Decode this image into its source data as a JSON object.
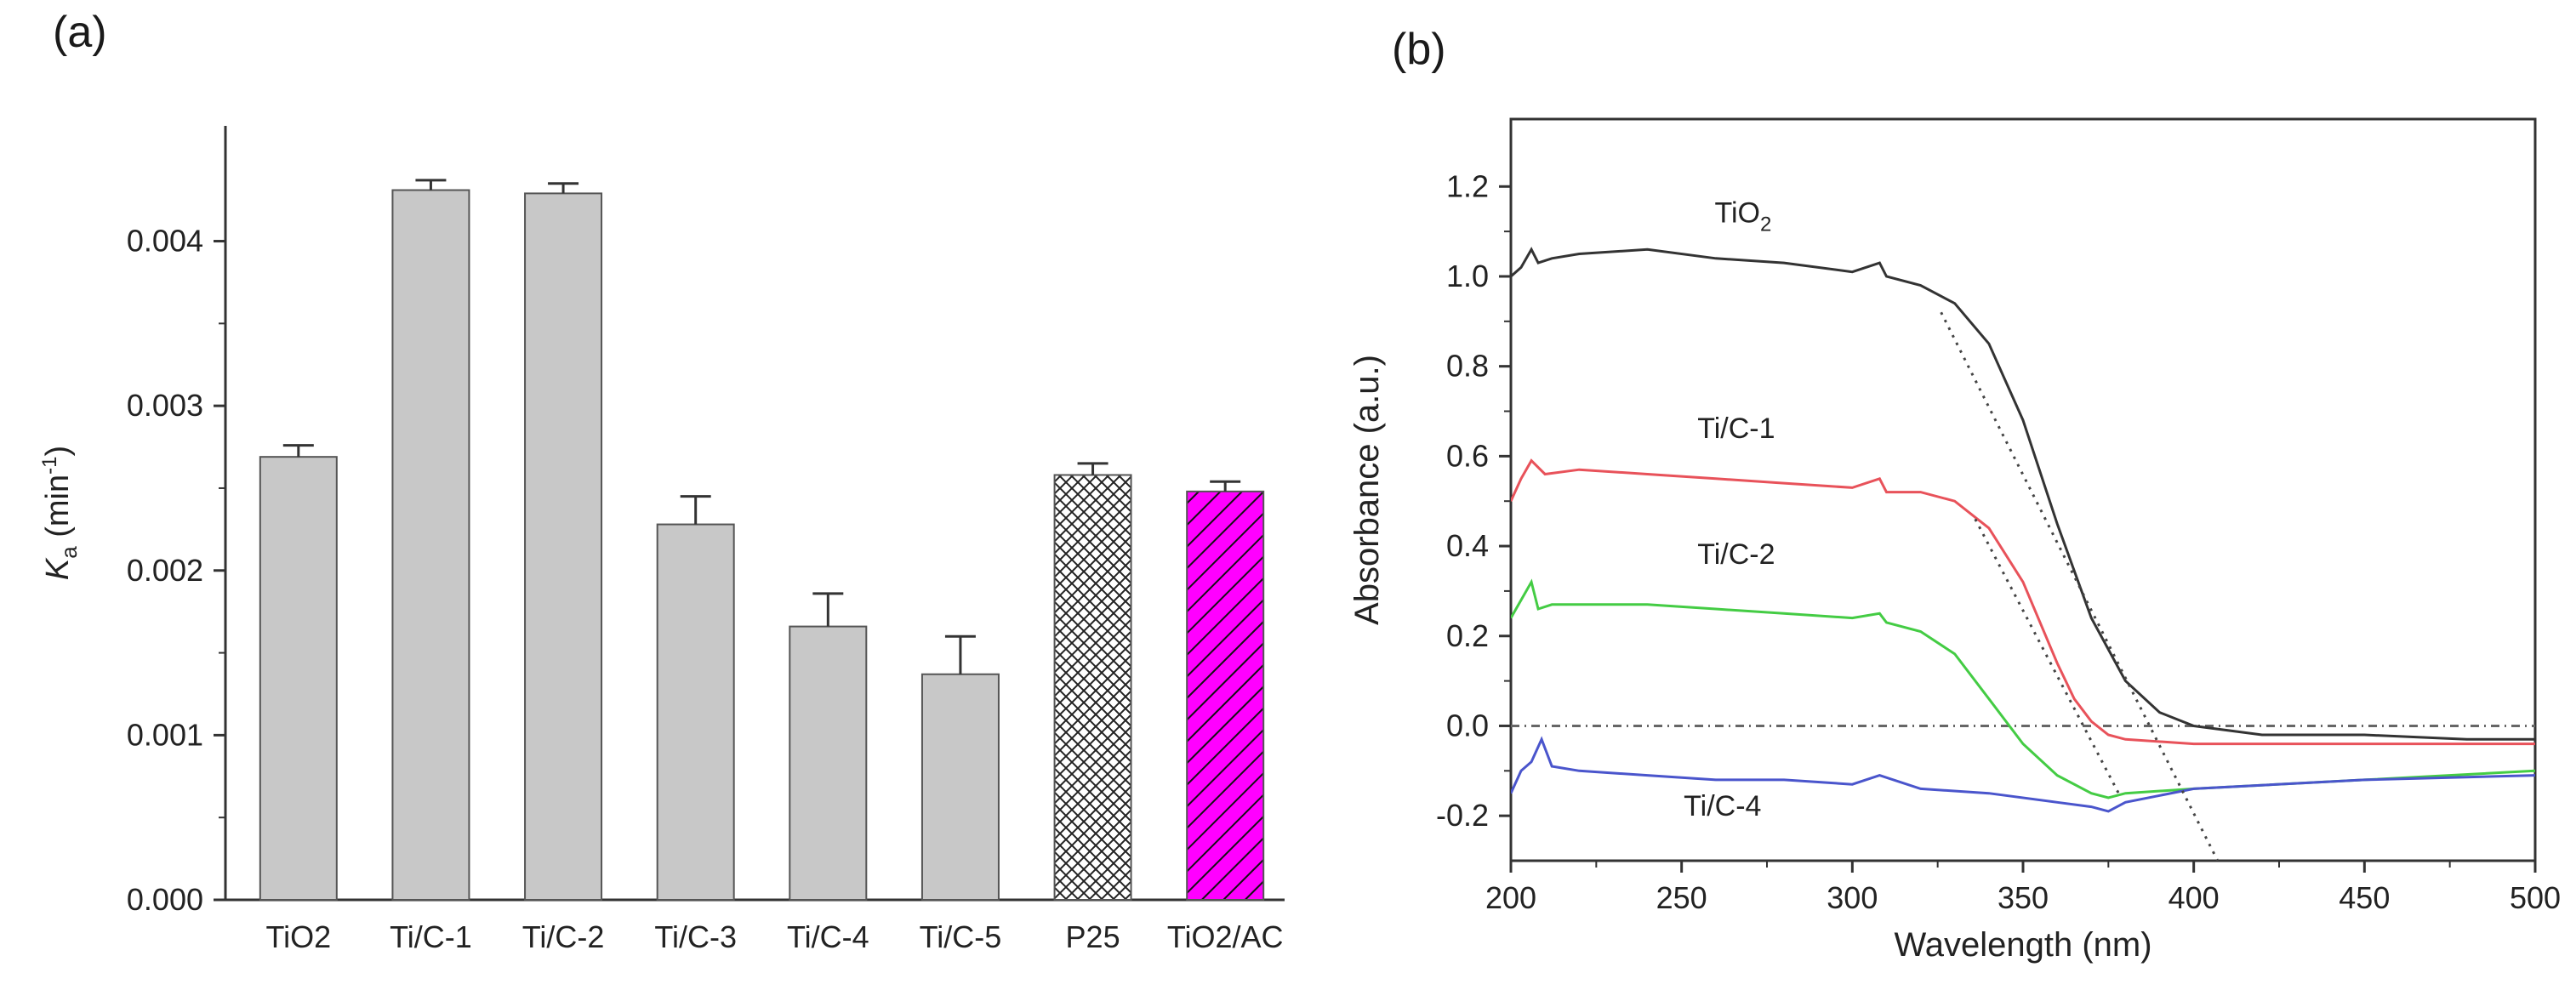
{
  "panels": {
    "a": {
      "label": "(a)"
    },
    "b": {
      "label": "(b)"
    }
  },
  "chart_data": [
    {
      "type": "bar",
      "panel": "(a)",
      "categories": [
        "TiO2",
        "Ti/C-1",
        "Ti/C-2",
        "Ti/C-3",
        "Ti/C-4",
        "Ti/C-5",
        "P25",
        "TiO2/AC"
      ],
      "values": [
        0.00269,
        0.00431,
        0.00429,
        0.00228,
        0.00166,
        0.00137,
        0.00258,
        0.00248
      ],
      "errors": [
        7e-05,
        6e-05,
        6e-05,
        0.00017,
        0.0002,
        0.00023,
        7e-05,
        6e-05
      ],
      "fills": [
        "gray",
        "gray",
        "gray",
        "gray",
        "gray",
        "gray",
        "crosshatch",
        "magenta-hatch"
      ],
      "colors": {
        "bar": "#c8c8c8",
        "edge": "#555555",
        "accent": "#ff00ff"
      },
      "ylabel_main": "K",
      "ylabel_sub": "a",
      "ylabel_unit": " (min",
      "ylabel_sup": "-1",
      "ylabel_close": ")",
      "xlabel": "",
      "ylim": [
        0,
        0.0047
      ],
      "yticks": [
        0.0,
        0.001,
        0.002,
        0.003,
        0.004
      ],
      "ytick_labels": [
        "0.000",
        "0.001",
        "0.002",
        "0.003",
        "0.004"
      ]
    },
    {
      "type": "line",
      "panel": "(b)",
      "xlabel": "Wavelength (nm)",
      "ylabel": "Absorbance (a.u.)",
      "xlim": [
        200,
        500
      ],
      "ylim": [
        -0.3,
        1.35
      ],
      "xticks": [
        200,
        250,
        300,
        350,
        400,
        450,
        500
      ],
      "xtick_labels": [
        "200",
        "250",
        "300",
        "350",
        "400",
        "450",
        "500"
      ],
      "yticks": [
        -0.2,
        0.0,
        0.2,
        0.4,
        0.6,
        0.8,
        1.0,
        1.2
      ],
      "ytick_labels": [
        "-0.2",
        "0.0",
        "0.2",
        "0.4",
        "0.6",
        "0.8",
        "1.0",
        "1.2"
      ],
      "baseline": 0.0,
      "series": [
        {
          "name": "TiO",
          "name_sub": "2",
          "color": "#333333",
          "x": [
            200,
            203,
            206,
            208,
            212,
            220,
            240,
            260,
            280,
            300,
            308,
            310,
            320,
            330,
            340,
            350,
            360,
            370,
            380,
            390,
            400,
            410,
            420,
            450,
            480,
            500
          ],
          "y": [
            1.0,
            1.02,
            1.06,
            1.03,
            1.04,
            1.05,
            1.06,
            1.04,
            1.03,
            1.01,
            1.03,
            1.0,
            0.98,
            0.94,
            0.85,
            0.68,
            0.45,
            0.24,
            0.1,
            0.03,
            0.0,
            -0.01,
            -0.02,
            -0.02,
            -0.03,
            -0.03
          ]
        },
        {
          "name": "Ti/C-1",
          "color": "#e8525a",
          "x": [
            200,
            203,
            206,
            210,
            220,
            240,
            260,
            280,
            300,
            308,
            310,
            320,
            330,
            340,
            350,
            360,
            365,
            370,
            375,
            380,
            400,
            450,
            500
          ],
          "y": [
            0.5,
            0.55,
            0.59,
            0.56,
            0.57,
            0.56,
            0.55,
            0.54,
            0.53,
            0.55,
            0.52,
            0.52,
            0.5,
            0.44,
            0.32,
            0.14,
            0.06,
            0.01,
            -0.02,
            -0.03,
            -0.04,
            -0.04,
            -0.04
          ]
        },
        {
          "name": "Ti/C-2",
          "color": "#44cc44",
          "x": [
            200,
            203,
            206,
            208,
            212,
            220,
            240,
            260,
            280,
            300,
            308,
            310,
            320,
            330,
            340,
            350,
            360,
            370,
            375,
            380,
            400,
            450,
            500
          ],
          "y": [
            0.24,
            0.28,
            0.32,
            0.26,
            0.27,
            0.27,
            0.27,
            0.26,
            0.25,
            0.24,
            0.25,
            0.23,
            0.21,
            0.16,
            0.06,
            -0.04,
            -0.11,
            -0.15,
            -0.16,
            -0.15,
            -0.14,
            -0.12,
            -0.1
          ]
        },
        {
          "name": "Ti/C-4",
          "color": "#4a55cc",
          "x": [
            200,
            203,
            206,
            209,
            212,
            220,
            240,
            260,
            280,
            300,
            308,
            320,
            340,
            360,
            370,
            375,
            380,
            400,
            450,
            500
          ],
          "y": [
            -0.15,
            -0.1,
            -0.08,
            -0.03,
            -0.09,
            -0.1,
            -0.11,
            -0.12,
            -0.12,
            -0.13,
            -0.11,
            -0.14,
            -0.15,
            -0.17,
            -0.18,
            -0.19,
            -0.17,
            -0.14,
            -0.12,
            -0.11
          ]
        }
      ],
      "tangents": [
        {
          "x": [
            326,
            407
          ],
          "y": [
            0.92,
            -0.3
          ]
        },
        {
          "x": [
            336,
            378
          ],
          "y": [
            0.46,
            -0.15
          ]
        }
      ],
      "label_positions": [
        {
          "x": 268,
          "y": 1.12
        },
        {
          "x": 266,
          "y": 0.64
        },
        {
          "x": 266,
          "y": 0.36
        },
        {
          "x": 262,
          "y": -0.2
        }
      ]
    }
  ]
}
